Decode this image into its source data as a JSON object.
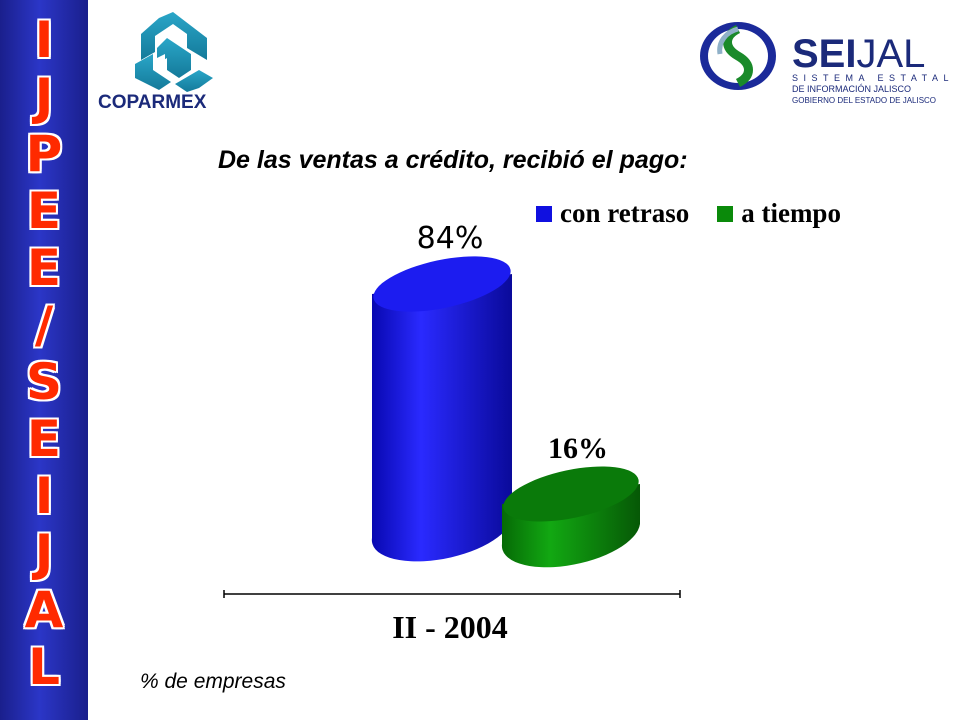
{
  "sidebar": {
    "letters": [
      "I",
      "J",
      "P",
      "E",
      "E",
      "/",
      "S",
      "E",
      "I",
      "J",
      "A",
      "L"
    ]
  },
  "logos": {
    "coparmex": {
      "text": "COPARMEX"
    },
    "seijal": {
      "brand_bold": "SEI",
      "brand_light": "JAL",
      "line1": "SISTEMA ESTATAL",
      "line2": "DE INFORMACIÓN JALISCO",
      "line3": "GOBIERNO DEL ESTADO DE JALISCO"
    }
  },
  "footer": {
    "note": "% de empresas"
  },
  "colors": {
    "sidebar": "#2b36c7",
    "letters": "#ff2a00",
    "blue_bar": "#1010e0",
    "green_bar": "#0a8a0a"
  },
  "chart_data": {
    "type": "bar",
    "title": "De las ventas a crédito, recibió el pago:",
    "categories": [
      "II - 2004"
    ],
    "series": [
      {
        "name": "con retraso",
        "values": [
          84
        ],
        "label": "84%",
        "color": "#1010e0"
      },
      {
        "name": "a tiempo",
        "values": [
          16
        ],
        "label": "16%",
        "color": "#0a8a0a"
      }
    ],
    "xlabel": "",
    "ylabel": "",
    "ylim": [
      0,
      100
    ],
    "grid": false,
    "legend": "top-right",
    "style": "3d-cylinder"
  }
}
